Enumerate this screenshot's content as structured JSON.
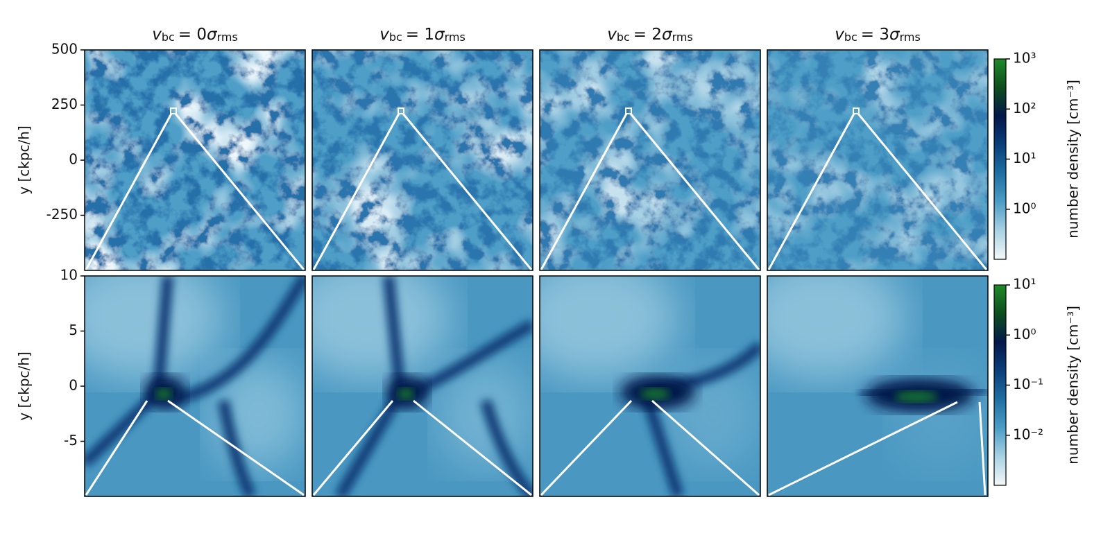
{
  "columns": [
    {
      "title": {
        "symbol": "v",
        "symbol_sub": "bc",
        "equals": "= 0",
        "sigma": "σ",
        "sigma_sub": "rms"
      }
    },
    {
      "title": {
        "symbol": "v",
        "symbol_sub": "bc",
        "equals": "= 1",
        "sigma": "σ",
        "sigma_sub": "rms"
      }
    },
    {
      "title": {
        "symbol": "v",
        "symbol_sub": "bc",
        "equals": "= 2",
        "sigma": "σ",
        "sigma_sub": "rms"
      }
    },
    {
      "title": {
        "symbol": "v",
        "symbol_sub": "bc",
        "equals": "= 3",
        "sigma": "σ",
        "sigma_sub": "rms"
      }
    }
  ],
  "rows": [
    {
      "ylabel": "y [ckpc/h]",
      "ylim": [
        -500,
        500
      ],
      "yticks": [
        500,
        250,
        0,
        -250
      ],
      "colorbar": {
        "label": "number density [cm⁻³]",
        "scale": "log",
        "lim": [
          0.1,
          1000
        ],
        "ticks": [
          {
            "value": 1,
            "label": "10⁰"
          },
          {
            "value": 10,
            "label": "10¹"
          },
          {
            "value": 100,
            "label": "10²"
          },
          {
            "value": 1000,
            "label": "10³"
          }
        ]
      }
    },
    {
      "ylabel": "y [ckpc/h]",
      "ylim": [
        -10,
        10
      ],
      "yticks": [
        10,
        5,
        0,
        -5
      ],
      "colorbar": {
        "label": "number density [cm⁻³]",
        "scale": "log",
        "lim": [
          0.001,
          10
        ],
        "ticks": [
          {
            "value": 0.01,
            "label": "10⁻²"
          },
          {
            "value": 0.1,
            "label": "10⁻¹"
          },
          {
            "value": 1,
            "label": "10⁰"
          },
          {
            "value": 10,
            "label": "10¹"
          }
        ]
      }
    }
  ],
  "colormap": [
    "#f4f8f9",
    "#a9d2e3",
    "#4c9dc6",
    "#1f6fa3",
    "#0a3f7a",
    "#05184a",
    "#0d4d1c",
    "#1f8a2a"
  ]
}
